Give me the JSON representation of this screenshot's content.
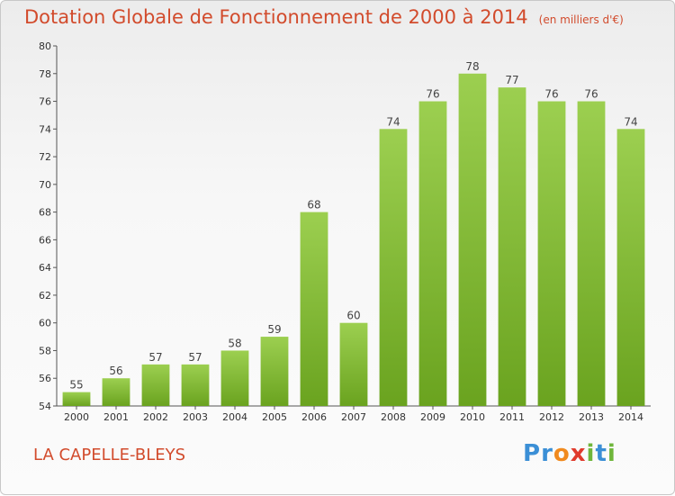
{
  "title": "Dotation Globale de Fonctionnement de 2000 à 2014",
  "subtitle": "(en milliers d'€)",
  "commune": "LA CAPELLE-BLEYS",
  "logo": "Proxiti",
  "colors": {
    "bar_top": "#9ccf50",
    "bar_bottom": "#6aa31f",
    "title": "#d24b2c"
  },
  "chart_data": {
    "type": "bar",
    "categories": [
      "2000",
      "2001",
      "2002",
      "2003",
      "2004",
      "2005",
      "2006",
      "2007",
      "2008",
      "2009",
      "2010",
      "2011",
      "2012",
      "2013",
      "2014"
    ],
    "values": [
      55,
      56,
      57,
      57,
      58,
      59,
      68,
      60,
      74,
      76,
      78,
      77,
      76,
      76,
      74
    ],
    "ylim": [
      54,
      80
    ],
    "yticks": [
      54,
      56,
      58,
      60,
      62,
      64,
      66,
      68,
      70,
      72,
      74,
      76,
      78,
      80
    ],
    "grid": false
  }
}
